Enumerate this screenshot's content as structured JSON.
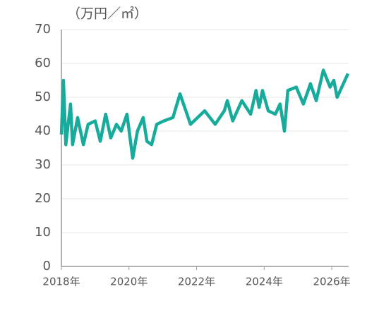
{
  "chart_data": {
    "type": "line",
    "title": "（万円／㎡）",
    "x": [
      2018.0,
      2018.06,
      2018.13,
      2018.27,
      2018.33,
      2018.48,
      2018.65,
      2018.79,
      2019.0,
      2019.15,
      2019.31,
      2019.46,
      2019.63,
      2019.77,
      2019.94,
      2020.11,
      2020.25,
      2020.42,
      2020.53,
      2020.67,
      2020.82,
      2021.03,
      2021.3,
      2021.51,
      2021.82,
      2022.24,
      2022.55,
      2022.82,
      2022.91,
      2023.07,
      2023.34,
      2023.6,
      2023.76,
      2023.85,
      2023.95,
      2024.12,
      2024.33,
      2024.47,
      2024.6,
      2024.7,
      2024.95,
      2025.16,
      2025.37,
      2025.54,
      2025.75,
      2025.95,
      2026.06,
      2026.16,
      2026.48
    ],
    "series": [
      {
        "color": "#17ab9c",
        "values": [
          39,
          55,
          36,
          48,
          36,
          44,
          36,
          42,
          43,
          37,
          45,
          38,
          42,
          40,
          45,
          32,
          40,
          44,
          37,
          36,
          42,
          43,
          44,
          51,
          42,
          46,
          42,
          46,
          49,
          43,
          49,
          45,
          52,
          47,
          52,
          46,
          45,
          48,
          40,
          52,
          53,
          48,
          54,
          49,
          58,
          53,
          55,
          50,
          57
        ]
      }
    ],
    "xlim": [
      2018,
      2026.5
    ],
    "xticks": [
      {
        "value": 2018,
        "label": "2018年"
      },
      {
        "value": 2020,
        "label": "2020年"
      },
      {
        "value": 2022,
        "label": "2022年"
      },
      {
        "value": 2024,
        "label": "2024年"
      },
      {
        "value": 2026,
        "label": "2026年"
      }
    ],
    "ylim": [
      0,
      70
    ],
    "yticks": [
      0,
      10,
      20,
      30,
      40,
      50,
      60,
      70
    ],
    "grid": true
  }
}
